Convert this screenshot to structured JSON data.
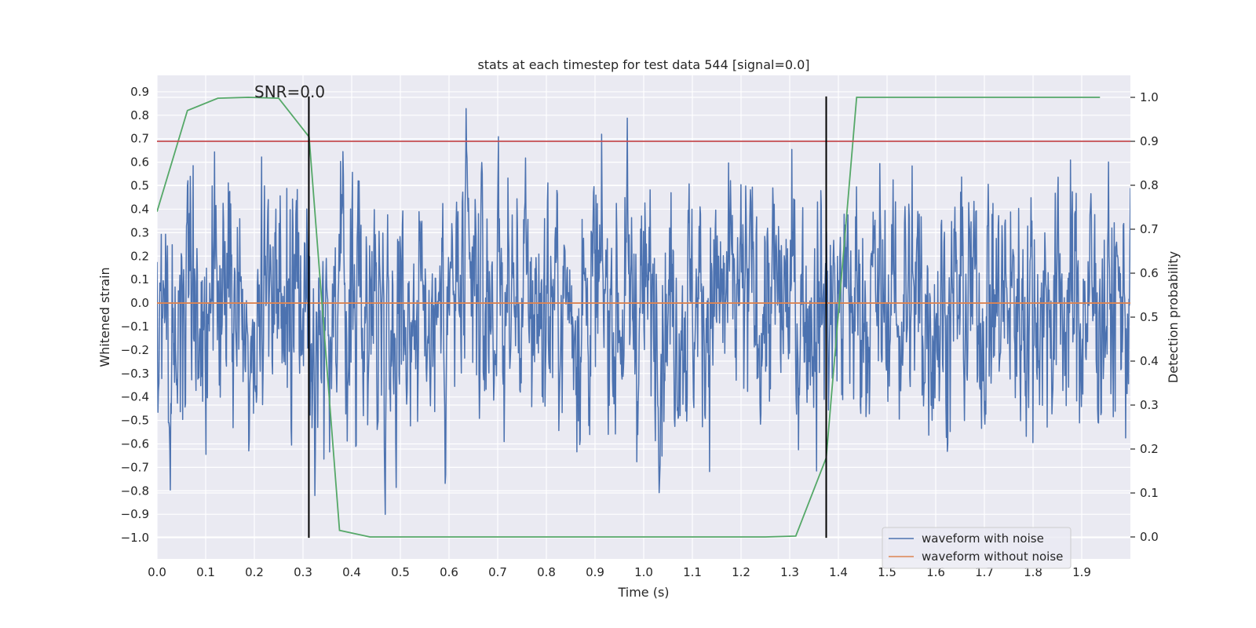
{
  "chart_data": {
    "type": "line",
    "title": "stats at each timestep for test data 544 [signal=0.0]",
    "xlabel": "Time (s)",
    "ylabel_left": "Whitened strain",
    "ylabel_right": "Detection probability",
    "xlim": [
      0.0,
      2.0
    ],
    "ylim_left": [
      -1.09,
      0.97
    ],
    "ylim_right": [
      -0.05,
      1.05
    ],
    "xticks": [
      "0.0",
      "0.1",
      "0.2",
      "0.3",
      "0.4",
      "0.5",
      "0.6",
      "0.7",
      "0.8",
      "0.9",
      "1.0",
      "1.1",
      "1.2",
      "1.3",
      "1.4",
      "1.5",
      "1.6",
      "1.7",
      "1.8",
      "1.9"
    ],
    "yticks_left": [
      "0.9",
      "0.8",
      "0.7",
      "0.6",
      "0.5",
      "0.4",
      "0.3",
      "0.2",
      "0.1",
      "0.0",
      "-0.1",
      "-0.2",
      "-0.3",
      "-0.4",
      "-0.5",
      "-0.6",
      "-0.7",
      "-0.8",
      "-0.9",
      "-1.0"
    ],
    "yticks_right": [
      "1.0",
      "0.9",
      "0.8",
      "0.7",
      "0.6",
      "0.5",
      "0.4",
      "0.3",
      "0.2",
      "0.1",
      "0.0"
    ],
    "annotation": "SNR=0.0",
    "threshold_right": 0.9,
    "event_lines_x": [
      0.312,
      1.375
    ],
    "event_lines_left_range": [
      -1.0,
      0.88
    ],
    "series": [
      {
        "name": "waveform with noise",
        "color": "#4c72b0",
        "axis": "left",
        "kind": "noise",
        "n_samples": 2048,
        "typical_amplitude": 0.3,
        "max": 0.88,
        "min": -0.99
      },
      {
        "name": "waveform without noise",
        "color": "#dd8452",
        "axis": "left",
        "x": [
          0.0,
          2.0
        ],
        "y": [
          0.0,
          0.0
        ]
      },
      {
        "name": "detection probability",
        "color": "#55a868",
        "axis": "right",
        "x": [
          0.0,
          0.0625,
          0.125,
          0.1875,
          0.25,
          0.3125,
          0.375,
          0.4375,
          0.5,
          1.25,
          1.3125,
          1.375,
          1.4375,
          1.5,
          1.5625,
          1.625,
          1.6875,
          1.75,
          1.8125,
          1.875,
          1.9375
        ],
        "y": [
          0.74,
          0.97,
          0.998,
          1.0,
          0.998,
          0.91,
          0.015,
          0.0,
          0.0,
          0.0,
          0.002,
          0.18,
          1.0,
          1.0,
          1.0,
          1.0,
          1.0,
          1.0,
          1.0,
          1.0,
          1.0
        ]
      },
      {
        "name": "threshold",
        "color": "#c44e52",
        "axis": "right",
        "x": [
          0.0,
          2.0
        ],
        "y": [
          0.9,
          0.9
        ]
      }
    ],
    "legend": {
      "location": "lower-right",
      "entries": [
        "waveform with noise",
        "waveform without noise"
      ]
    },
    "grid": true
  }
}
